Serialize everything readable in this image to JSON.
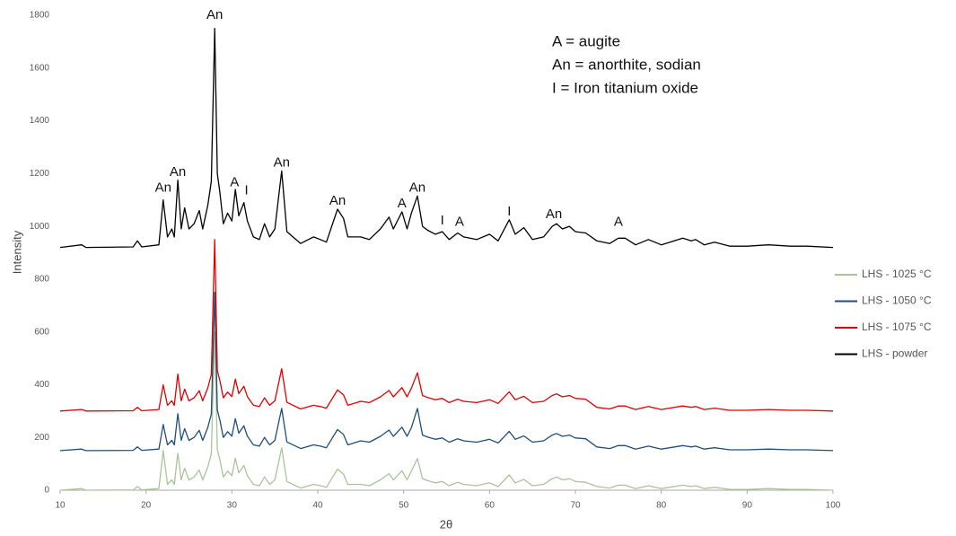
{
  "chart_data": {
    "type": "line",
    "xlabel": "2θ",
    "ylabel": "Intensity",
    "xlim": [
      10,
      100
    ],
    "xticks": [
      10,
      20,
      30,
      40,
      50,
      60,
      70,
      80,
      90,
      100
    ],
    "ylim": [
      0,
      1800
    ],
    "yticks": [
      0,
      200,
      400,
      600,
      800,
      1000,
      1200,
      1400,
      1600,
      1800
    ],
    "grid": false,
    "legend": "right",
    "key": [
      "A = augite",
      "An = anorthite, sodian",
      "I = Iron titanium oxide"
    ],
    "x": [
      10,
      12.5,
      13,
      18.5,
      19,
      19.5,
      21.5,
      22,
      22.5,
      23,
      23.3,
      23.7,
      24.1,
      24.5,
      25,
      25.6,
      26.2,
      26.6,
      27.2,
      27.6,
      28,
      28.3,
      28.6,
      29,
      29.5,
      30,
      30.4,
      30.8,
      31.4,
      31.8,
      32.5,
      33.2,
      33.8,
      34.4,
      35,
      35.8,
      36.4,
      38,
      39.5,
      40.3,
      41,
      42.3,
      43,
      43.5,
      45,
      46,
      47.3,
      48.3,
      48.8,
      49.8,
      50.4,
      50.9,
      51.6,
      52.2,
      52.8,
      53.7,
      54.5,
      55.3,
      56.3,
      57,
      58.5,
      60,
      61,
      62.3,
      63,
      64,
      65,
      66.3,
      67.3,
      67.8,
      68.5,
      69.3,
      70,
      71.2,
      72.5,
      74,
      75,
      75.8,
      77,
      78.5,
      80,
      82.5,
      83.5,
      84,
      85,
      86.2,
      88,
      90,
      92.5,
      95,
      97,
      100
    ],
    "series": [
      {
        "name": "LHS - 1025 °C",
        "color": "#a9c49a",
        "values": [
          0,
          6,
          0,
          1,
          14,
          1,
          6,
          150,
          22,
          39,
          22,
          140,
          39,
          83,
          39,
          50,
          77,
          39,
          88,
          138,
          600,
          154,
          116,
          50,
          72,
          55,
          121,
          66,
          94,
          55,
          22,
          17,
          50,
          22,
          39,
          160,
          33,
          8,
          22,
          17,
          11,
          80,
          61,
          22,
          22,
          17,
          39,
          63,
          39,
          74,
          39,
          72,
          120,
          44,
          36,
          28,
          33,
          17,
          30,
          22,
          17,
          28,
          14,
          58,
          28,
          41,
          17,
          22,
          44,
          50,
          39,
          44,
          33,
          30,
          14,
          8,
          19,
          19,
          6,
          17,
          6,
          19,
          14,
          17,
          6,
          11,
          3,
          3,
          6,
          3,
          3,
          0
        ]
      },
      {
        "name": "LHS - 1050 °C",
        "color": "#1f4e79",
        "values": [
          150,
          156,
          150,
          151,
          164,
          151,
          156,
          249,
          172,
          189,
          172,
          290,
          189,
          233,
          189,
          200,
          227,
          189,
          238,
          288,
          750,
          304,
          266,
          200,
          222,
          205,
          271,
          216,
          244,
          205,
          172,
          167,
          200,
          172,
          189,
          310,
          183,
          158,
          172,
          167,
          161,
          230,
          211,
          172,
          187,
          182,
          204,
          228,
          204,
          239,
          204,
          237,
          310,
          209,
          201,
          193,
          198,
          182,
          195,
          187,
          182,
          193,
          179,
          223,
          193,
          206,
          182,
          187,
          209,
          215,
          204,
          209,
          198,
          195,
          164,
          158,
          169,
          169,
          156,
          167,
          156,
          169,
          164,
          167,
          156,
          161,
          153,
          153,
          156,
          153,
          153,
          150
        ]
      },
      {
        "name": "LHS - 1075 °C",
        "color": "#e00000",
        "values": [
          300,
          306,
          300,
          301,
          314,
          301,
          306,
          399,
          322,
          339,
          322,
          440,
          339,
          383,
          339,
          350,
          377,
          339,
          388,
          438,
          950,
          454,
          416,
          350,
          372,
          355,
          421,
          366,
          394,
          355,
          322,
          317,
          350,
          322,
          339,
          460,
          333,
          308,
          322,
          317,
          311,
          380,
          361,
          322,
          337,
          332,
          354,
          378,
          354,
          389,
          354,
          387,
          445,
          359,
          351,
          343,
          348,
          332,
          345,
          337,
          332,
          343,
          329,
          373,
          343,
          356,
          332,
          337,
          359,
          365,
          354,
          359,
          348,
          345,
          314,
          308,
          319,
          319,
          306,
          317,
          306,
          319,
          314,
          317,
          306,
          311,
          303,
          303,
          306,
          303,
          303,
          300
        ]
      },
      {
        "name": "LHS - powder",
        "color": "#000000",
        "values": [
          920,
          930,
          920,
          922,
          945,
          922,
          930,
          1100,
          960,
          990,
          960,
          1175,
          990,
          1070,
          990,
          1010,
          1060,
          990,
          1080,
          1170,
          1750,
          1200,
          1130,
          1010,
          1050,
          1020,
          1140,
          1040,
          1090,
          1020,
          960,
          950,
          1010,
          960,
          990,
          1210,
          980,
          935,
          960,
          950,
          940,
          1065,
          1030,
          960,
          960,
          950,
          990,
          1035,
          990,
          1055,
          990,
          1050,
          1115,
          1000,
          985,
          970,
          980,
          950,
          975,
          960,
          950,
          970,
          945,
          1025,
          970,
          995,
          950,
          960,
          1000,
          1010,
          990,
          1000,
          980,
          975,
          945,
          935,
          955,
          955,
          930,
          950,
          930,
          955,
          945,
          950,
          930,
          940,
          925,
          925,
          930,
          925,
          925,
          920
        ]
      }
    ],
    "annotations": [
      {
        "text": "An",
        "x": 22,
        "y": 1145
      },
      {
        "text": "An",
        "x": 23.7,
        "y": 1205
      },
      {
        "text": "An",
        "x": 28,
        "y": 1800
      },
      {
        "text": "A",
        "x": 30.3,
        "y": 1165
      },
      {
        "text": "I",
        "x": 31.7,
        "y": 1135
      },
      {
        "text": "An",
        "x": 35.8,
        "y": 1240
      },
      {
        "text": "An",
        "x": 42.3,
        "y": 1095
      },
      {
        "text": "A",
        "x": 49.8,
        "y": 1085
      },
      {
        "text": "An",
        "x": 51.6,
        "y": 1145
      },
      {
        "text": "I",
        "x": 54.5,
        "y": 1020
      },
      {
        "text": "A",
        "x": 56.5,
        "y": 1015
      },
      {
        "text": "I",
        "x": 62.3,
        "y": 1055
      },
      {
        "text": "An",
        "x": 67.5,
        "y": 1045
      },
      {
        "text": "A",
        "x": 75,
        "y": 1015
      }
    ]
  }
}
